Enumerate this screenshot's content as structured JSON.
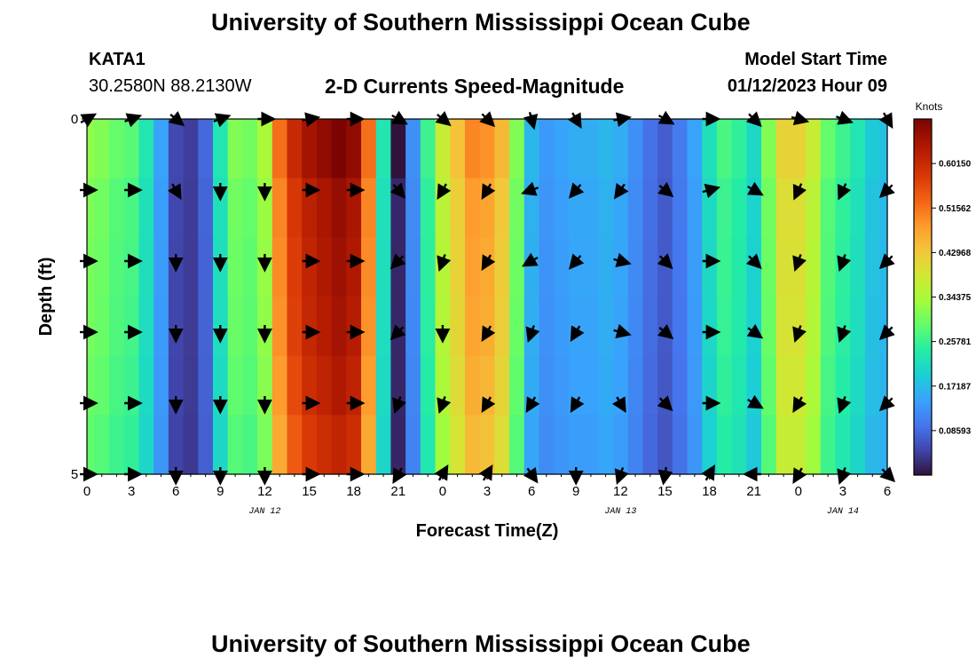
{
  "page": {
    "title": "University of Southern Mississippi Ocean Cube",
    "station": "KATA1",
    "coords": "30.2580N  88.2130W",
    "subtitle": "2-D Currents Speed-Magnitude",
    "model_label": "Model Start Time",
    "model_time": "01/12/2023 Hour 09",
    "bottom_title": "University of Southern Mississippi Ocean Cube"
  },
  "chart_data": {
    "type": "heatmap",
    "title": "2-D Currents Speed-Magnitude",
    "xlabel": "Forecast Time(Z)",
    "ylabel": "Depth (ft)",
    "x_ticks": [
      "0",
      "3",
      "6",
      "9",
      "12",
      "15",
      "18",
      "21",
      "0",
      "3",
      "6",
      "9",
      "12",
      "15",
      "18",
      "21",
      "0",
      "3",
      "6"
    ],
    "date_labels": [
      {
        "text": "JAN 12",
        "at_hour": 12
      },
      {
        "text": "JAN 13",
        "at_hour": 36
      },
      {
        "text": "JAN 14",
        "at_hour": 51
      }
    ],
    "x_range_hours": [
      0,
      54
    ],
    "y_ticks": [
      "0",
      "5"
    ],
    "ylim": [
      0,
      5
    ],
    "colorbar": {
      "label": "Knots",
      "ticks": [
        "0.60150",
        "0.51562",
        "0.42968",
        "0.34375",
        "0.25781",
        "0.17187",
        "0.08593"
      ],
      "range": [
        0,
        0.6875
      ]
    },
    "speed_by_hour_knots": [
      0.31,
      0.3,
      0.28,
      0.27,
      0.22,
      0.14,
      0.05,
      0.04,
      0.08,
      0.22,
      0.3,
      0.29,
      0.33,
      0.5,
      0.58,
      0.62,
      0.64,
      0.66,
      0.64,
      0.5,
      0.22,
      0.02,
      0.12,
      0.25,
      0.36,
      0.42,
      0.48,
      0.47,
      0.43,
      0.3,
      0.16,
      0.13,
      0.14,
      0.15,
      0.15,
      0.16,
      0.15,
      0.12,
      0.09,
      0.07,
      0.1,
      0.14,
      0.21,
      0.26,
      0.24,
      0.2,
      0.3,
      0.4,
      0.4,
      0.36,
      0.28,
      0.25,
      0.22,
      0.18,
      0.17
    ],
    "depth_levels_ft": [
      0,
      1,
      2,
      3,
      4,
      5
    ],
    "arrow_hours": [
      0,
      3,
      6,
      9,
      12,
      15,
      18,
      21,
      24,
      27,
      30,
      33,
      36,
      39,
      42,
      45,
      48,
      51,
      54
    ],
    "arrow_directions_deg": [
      [
        30,
        20,
        320,
        20,
        0,
        10,
        0,
        330,
        320,
        315,
        285,
        300,
        10,
        330,
        0,
        315,
        345,
        340,
        300
      ],
      [
        0,
        0,
        300,
        270,
        270,
        0,
        0,
        310,
        240,
        240,
        200,
        230,
        235,
        320,
        15,
        330,
        245,
        245,
        225
      ],
      [
        0,
        0,
        270,
        270,
        270,
        0,
        0,
        225,
        250,
        240,
        210,
        230,
        345,
        315,
        0,
        315,
        250,
        250,
        225
      ],
      [
        0,
        0,
        270,
        270,
        270,
        0,
        0,
        225,
        270,
        240,
        250,
        240,
        345,
        320,
        0,
        325,
        250,
        250,
        225
      ],
      [
        0,
        0,
        270,
        270,
        270,
        0,
        0,
        250,
        250,
        240,
        240,
        240,
        300,
        315,
        0,
        330,
        240,
        250,
        225
      ],
      [
        0,
        0,
        270,
        270,
        270,
        0,
        0,
        240,
        60,
        60,
        305,
        270,
        250,
        260,
        60,
        180,
        240,
        250,
        315
      ]
    ]
  }
}
